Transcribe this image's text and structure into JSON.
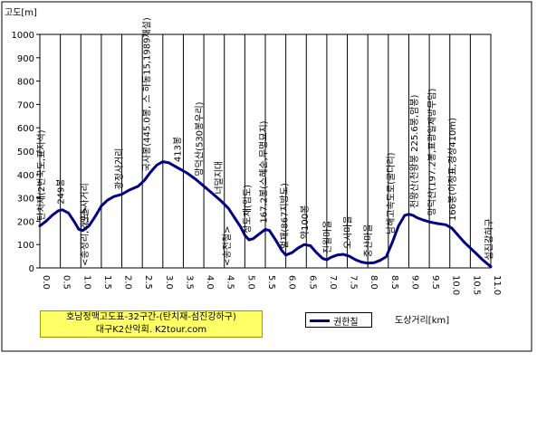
{
  "chart_data": {
    "type": "line",
    "ylabel": "고도[m]",
    "xlabel": "도상거리[km]",
    "title_lines": [
      "호남정맥고도표-32구간-(탄치재-섬진강하구)",
      "대구K2산악회.  K2tour.com"
    ],
    "ylim": [
      0,
      1000
    ],
    "xlim": [
      0,
      11
    ],
    "yticks": [
      0,
      100,
      200,
      300,
      400,
      500,
      600,
      700,
      800,
      900,
      1000
    ],
    "xticks": [
      "0.0",
      "0.5",
      "1.0",
      "1.5",
      "2.0",
      "2.5",
      "3.0",
      "3.5",
      "4.0",
      "4.5",
      "5.0",
      "5.5",
      "6.0",
      "6.5",
      "7.0",
      "7.5",
      "8.0",
      "8.5",
      "9.0",
      "9.5",
      "10.0",
      "10.5",
      "11.0"
    ],
    "grid": "vertical",
    "legend": "bottom",
    "series": [
      {
        "name": "권한칠",
        "color": "#000080",
        "x": [
          0,
          0.15,
          0.3,
          0.45,
          0.55,
          0.7,
          0.85,
          0.95,
          1.05,
          1.2,
          1.35,
          1.5,
          1.65,
          1.8,
          2.0,
          2.2,
          2.4,
          2.55,
          2.7,
          2.85,
          3.0,
          3.15,
          3.3,
          3.45,
          3.6,
          3.8,
          4.0,
          4.2,
          4.4,
          4.6,
          4.75,
          4.9,
          5.0,
          5.1,
          5.2,
          5.35,
          5.5,
          5.6,
          5.75,
          5.9,
          6.0,
          6.15,
          6.3,
          6.45,
          6.6,
          6.75,
          6.9,
          7.0,
          7.1,
          7.25,
          7.4,
          7.55,
          7.7,
          7.85,
          8.0,
          8.15,
          8.3,
          8.45,
          8.6,
          8.75,
          8.9,
          9.0,
          9.1,
          9.2,
          9.35,
          9.5,
          9.7,
          9.9,
          10.05,
          10.2,
          10.35,
          10.5,
          10.65,
          10.8,
          11.0
        ],
        "values": [
          180,
          200,
          225,
          245,
          249,
          235,
          195,
          165,
          160,
          180,
          220,
          265,
          290,
          305,
          315,
          335,
          350,
          375,
          410,
          440,
          455,
          450,
          435,
          420,
          405,
          380,
          350,
          320,
          290,
          255,
          215,
          175,
          140,
          120,
          125,
          145,
          165,
          160,
          120,
          75,
          55,
          65,
          85,
          100,
          95,
          65,
          40,
          35,
          45,
          55,
          58,
          50,
          35,
          25,
          20,
          22,
          32,
          48,
          110,
          180,
          225,
          230,
          225,
          215,
          205,
          197,
          190,
          185,
          170,
          140,
          110,
          85,
          60,
          35,
          5
        ]
      }
    ],
    "annotations": [
      {
        "x": 0.02,
        "y": 180,
        "text": "탄치재(2번국도,표지석)"
      },
      {
        "x": 0.5,
        "y": 249,
        "text": "249봉"
      },
      {
        "x": 1.08,
        "y": 162,
        "text": "신촌사거리"
      },
      {
        "x": 1.08,
        "y": 130,
        "text": "<송정리,외포>",
        "below": true
      },
      {
        "x": 1.92,
        "y": 312,
        "text": "광정사거리"
      },
      {
        "x": 2.6,
        "y": 390,
        "text": "국사봉(445.0봉, 스 하동15,1989재설)"
      },
      {
        "x": 3.35,
        "y": 430,
        "text": "413봉"
      },
      {
        "x": 3.88,
        "y": 370,
        "text": "망덕산(530봉우리)",
        "placeholder": true
      },
      {
        "x": 4.35,
        "y": 292,
        "text": "너덜지대"
      },
      {
        "x": 4.55,
        "y": 245,
        "text": "<송전철>",
        "below": true
      },
      {
        "x": 5.05,
        "y": 125,
        "text": "상도재(임도)"
      },
      {
        "x": 5.45,
        "y": 168,
        "text": "167.2봉(스헤순,무명묘지)"
      },
      {
        "x": 5.95,
        "y": 58,
        "text": "벌재(867지방도)"
      },
      {
        "x": 6.45,
        "y": 100,
        "text": "약100봉"
      },
      {
        "x": 7.0,
        "y": 38,
        "text": "진월마을"
      },
      {
        "x": 7.5,
        "y": 58,
        "text": "오사마을"
      },
      {
        "x": 8.0,
        "y": 22,
        "text": "중산마을"
      },
      {
        "x": 8.55,
        "y": 120,
        "text": "남해고속도로(굴다리)"
      },
      {
        "x": 9.12,
        "y": 232,
        "text": "천왕산(천왕봉 225.6봉,암봉)"
      },
      {
        "x": 9.55,
        "y": 200,
        "text": "망덕산(197.2봉,표광일제방무덤)"
      },
      {
        "x": 10.05,
        "y": 178,
        "text": "166봉(이정표,경상410m)"
      },
      {
        "x": 10.95,
        "y": 10,
        "text": "섬진강하구"
      }
    ]
  }
}
